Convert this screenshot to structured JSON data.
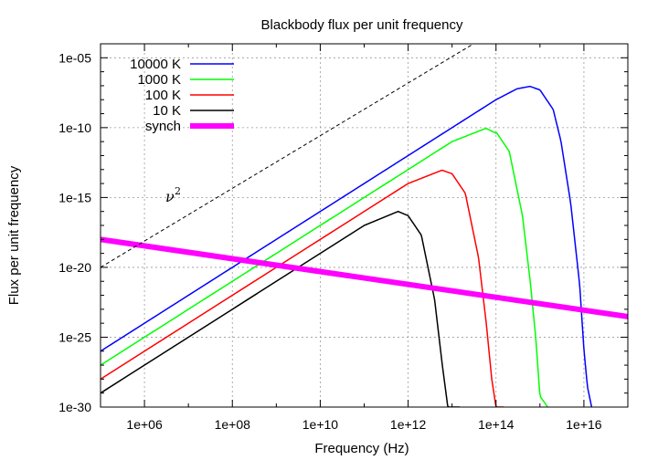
{
  "chart_data": {
    "type": "line",
    "title": "Blackbody flux per unit frequency",
    "xlabel": "Frequency (Hz)",
    "ylabel": "Flux per unit frequency",
    "x_scale": "log",
    "y_scale": "log",
    "xlim": [
      100000,
      1e+17
    ],
    "ylim": [
      1e-30,
      0.0001
    ],
    "grid": true,
    "legend_position": "top-left",
    "x_tick_values": [
      1000000.0,
      100000000.0,
      10000000000.0,
      1000000000000.0,
      100000000000000.0,
      1e+16
    ],
    "x_tick_labels": [
      "1e+06",
      "1e+08",
      "1e+10",
      "1e+12",
      "1e+14",
      "1e+16"
    ],
    "y_tick_values": [
      1e-30,
      1e-25,
      1e-20,
      1e-15,
      1e-10,
      1e-05
    ],
    "y_tick_labels": [
      "1e-30",
      "1e-25",
      "1e-20",
      "1e-15",
      "1e-10",
      "1e-05"
    ],
    "series": [
      {
        "name": "10000 K",
        "color": "#0000ff",
        "width": 1.5,
        "dash": "none",
        "T": 10000,
        "nu_cut": 1.5e+16,
        "x": [
          100000.0,
          1000000.0,
          10000000.0,
          100000000.0,
          1000000000.0,
          10000000000.0,
          100000000000.0,
          1000000000000.0,
          10000000000000.0,
          100000000000000.0,
          300000000000000.0,
          590000000000000.0,
          1000000000000000.0,
          2000000000000000.0,
          3000000000000000.0,
          5000000000000000.0,
          8000000000000000.0,
          1e+16,
          1.2e+16,
          1.5e+16
        ],
        "y": [
          1e-26,
          1e-24,
          1e-22,
          1e-20,
          1e-18,
          1e-16,
          1e-14,
          1e-12,
          1e-10,
          1e-08,
          6e-08,
          9e-08,
          5e-08,
          2e-09,
          1.1e-11,
          4e-16,
          6e-22,
          1.4e-26,
          3e-29,
          1e-30
        ]
      },
      {
        "name": "1000 K",
        "color": "#00ff00",
        "width": 1.5,
        "dash": "none",
        "T": 1000,
        "nu_cut": 1500000000000000.0,
        "x": [
          100000.0,
          1000000.0,
          10000000.0,
          100000000.0,
          1000000000.0,
          10000000000.0,
          100000000000.0,
          1000000000000.0,
          10000000000000.0,
          100000000000000.0,
          59000000000000.0,
          100000000000000.0,
          200000000000000.0,
          400000000000000.0,
          600000000000000.0,
          800000000000000.0,
          1000000000000000.0,
          1500000000000000.0
        ],
        "y": [
          1e-27,
          1e-25,
          1e-23,
          1e-21,
          1e-19,
          1e-17,
          1e-15,
          1e-13,
          1e-11,
          4e-11,
          9e-11,
          5e-11,
          2e-12,
          5e-17,
          1e-21,
          1e-25,
          6e-30,
          1e-30
        ]
      },
      {
        "name": "100 K",
        "color": "#ff0000",
        "width": 1.5,
        "dash": "none",
        "T": 100,
        "nu_cut": 150000000000000.0,
        "x": [
          100000.0,
          1000000.0,
          10000000.0,
          100000000.0,
          1000000000.0,
          10000000000.0,
          100000000000.0,
          1000000000000.0,
          5900000000000.0,
          10000000000000.0,
          20000000000000.0,
          40000000000000.0,
          60000000000000.0,
          80000000000000.0,
          100000000000000.0,
          150000000000000.0
        ],
        "y": [
          1e-28,
          1e-26,
          1e-24,
          1e-22,
          1e-20,
          1e-18,
          1e-16,
          1e-14,
          9e-14,
          5e-14,
          2e-15,
          5e-20,
          1e-24,
          1e-28,
          1e-30,
          1e-30
        ]
      },
      {
        "name": "10 K",
        "color": "#000000",
        "width": 1.5,
        "dash": "none",
        "T": 10,
        "nu_cut": 15000000000000.0,
        "x": [
          100000.0,
          1000000.0,
          10000000.0,
          100000000.0,
          1000000000.0,
          10000000000.0,
          100000000000.0,
          590000000000.0,
          1000000000000.0,
          2000000000000.0,
          4000000000000.0,
          6000000000000.0,
          8000000000000.0,
          10000000000000.0,
          15000000000000.0
        ],
        "y": [
          1e-29,
          1e-27,
          1e-25,
          1e-23,
          1e-21,
          1e-19,
          1e-17,
          1e-16,
          5e-17,
          2e-18,
          5e-23,
          1e-27,
          1e-30,
          1e-30,
          1e-30
        ]
      },
      {
        "name": "synch",
        "color": "#ff00ff",
        "width": 6,
        "dash": "none",
        "x": [
          100000,
          1e+17
        ],
        "y": [
          1e-18,
          3e-24
        ]
      },
      {
        "name": "",
        "color": "#000000",
        "width": 1,
        "dash": "4,3",
        "x": [
          100000,
          50000000000000.0
        ],
        "y": [
          1e-20,
          0.00025
        ]
      }
    ],
    "annotations": [
      {
        "text": "ν",
        "superscript": "2",
        "x": 3000000.0,
        "y": 5e-16
      }
    ]
  }
}
